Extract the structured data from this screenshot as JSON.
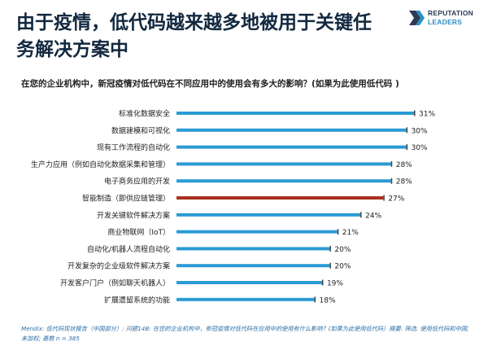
{
  "header": {
    "title_line1": "由于疫情，低代码越来越多地被用于关键任",
    "title_line2": "务解决方案中",
    "logo_line1": "REPUTATION",
    "logo_line2": "LEADERS"
  },
  "question": "在您的企业机构中，新冠疫情对低代码在不同应用中的使用会有多大的影响？(如果为此使用低代码 )",
  "footnote": {
    "line1": "Mendix: 低代码现状报告（中国部分）: 问题14B: 在您的企业机构中，新冠疫情对低代码在应用中的使用有什么影响？(如果为此使用低代码）摘要: 筛选: 使用低代码和中国;",
    "line2": "未加权; 基数 n = 385"
  },
  "colors": {
    "bar": "#2a9bd5",
    "highlight": "#a8321f",
    "value_tick": "#444444"
  },
  "chart_data": {
    "type": "bar",
    "orientation": "horizontal",
    "title": "",
    "xlabel": "",
    "ylabel": "",
    "xlim": [
      0,
      31
    ],
    "grid": false,
    "categories": [
      "标准化数据安全",
      "数据建模和可视化",
      "现有工作流程的自动化",
      "生产力应用（例如自动化数据采集和管理）",
      "电子商务应用的开发",
      "智能制造（即供应链管理）",
      "开发关键软件解决方案",
      "商业物联网（IoT）",
      "自动化/机器人流程自动化",
      "开发复杂的企业级软件解决方案",
      "开发客户门户（例如聊天机器人）",
      "扩展遗留系统的功能"
    ],
    "values": [
      31,
      30,
      30,
      28,
      28,
      27,
      24,
      21,
      20,
      20,
      19,
      18
    ],
    "value_labels": [
      "31%",
      "30%",
      "30%",
      "28%",
      "28%",
      "27%",
      "24%",
      "21%",
      "20%",
      "20%",
      "19%",
      "18%"
    ],
    "highlight_index": 5
  }
}
